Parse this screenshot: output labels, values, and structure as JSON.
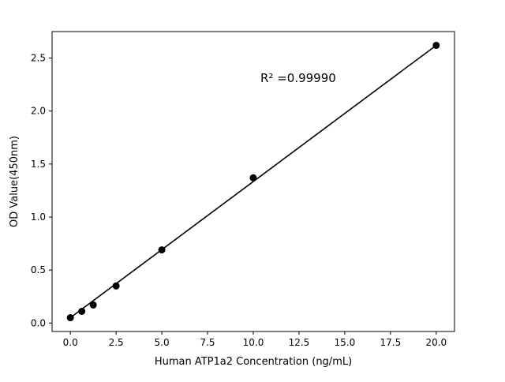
{
  "chart_data": {
    "type": "scatter",
    "title": "",
    "xlabel": "Human ATP1a2 Concentration (ng/mL)",
    "ylabel": "OD Value(450nm)",
    "annotation": "R² =0.99990",
    "x": [
      0,
      0.625,
      1.25,
      2.5,
      5,
      10,
      20
    ],
    "y": [
      0.05,
      0.11,
      0.17,
      0.35,
      0.69,
      1.37,
      2.62
    ],
    "fit_line": {
      "x1": 0,
      "y1": 0.05,
      "x2": 20,
      "y2": 2.62
    },
    "xlim": [
      -1,
      21
    ],
    "ylim": [
      -0.08,
      2.75
    ],
    "xticks": [
      0.0,
      2.5,
      5.0,
      7.5,
      10.0,
      12.5,
      15.0,
      17.5,
      20.0
    ],
    "xtick_labels": [
      "0.0",
      "2.5",
      "5.0",
      "7.5",
      "10.0",
      "12.5",
      "15.0",
      "17.5",
      "20.0"
    ],
    "yticks": [
      0.0,
      0.5,
      1.0,
      1.5,
      2.0,
      2.5
    ],
    "ytick_labels": [
      "0.0",
      "0.5",
      "1.0",
      "1.5",
      "2.0",
      "2.5"
    ],
    "grid": false,
    "legend": "none",
    "marker_color": "#000000",
    "line_color": "#000000",
    "background_color": "#ffffff"
  }
}
